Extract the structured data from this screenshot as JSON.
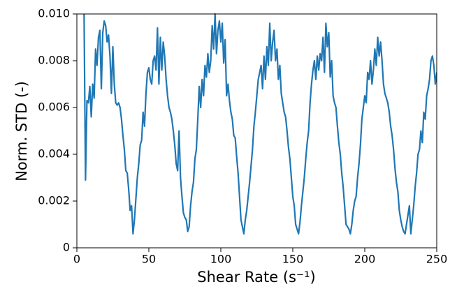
{
  "chart_data": {
    "type": "line",
    "x_label": "Shear Rate (s⁻¹)",
    "y_label": "Norm. STD (-)",
    "xlim": [
      0,
      250
    ],
    "xticks": [
      0,
      50,
      100,
      150,
      200,
      250
    ],
    "ylim": [
      0,
      0.01
    ],
    "yticks": [
      0,
      0.002,
      0.004,
      0.006,
      0.008,
      {
        "value": 0.01,
        "label": "0.010"
      }
    ],
    "grid": false,
    "series": [
      {
        "color": "#1f77b4",
        "x": [
          5,
          6,
          7,
          8,
          9,
          10,
          11,
          12,
          13,
          14,
          15,
          16,
          17,
          18,
          19,
          20,
          21,
          22,
          23,
          24,
          25,
          26,
          27,
          28,
          29,
          30,
          31,
          32,
          33,
          34,
          35,
          36,
          37,
          38,
          39,
          40,
          41,
          42,
          43,
          44,
          45,
          46,
          47,
          48,
          49,
          50,
          51,
          52,
          53,
          54,
          55,
          56,
          57,
          58,
          59,
          60,
          61,
          62,
          63,
          64,
          65,
          66,
          67,
          68,
          69,
          70,
          71,
          72,
          73,
          74,
          75,
          76,
          77,
          78,
          79,
          80,
          81,
          82,
          83,
          84,
          85,
          86,
          87,
          88,
          89,
          90,
          91,
          92,
          93,
          94,
          95,
          96,
          97,
          98,
          99,
          100,
          101,
          102,
          103,
          104,
          105,
          106,
          107,
          108,
          109,
          110,
          111,
          112,
          113,
          114,
          115,
          116,
          117,
          118,
          119,
          120,
          121,
          122,
          123,
          124,
          125,
          126,
          127,
          128,
          129,
          130,
          131,
          132,
          133,
          134,
          135,
          136,
          137,
          138,
          139,
          140,
          141,
          142,
          143,
          144,
          145,
          146,
          147,
          148,
          149,
          150,
          151,
          152,
          153,
          154,
          155,
          156,
          157,
          158,
          159,
          160,
          161,
          162,
          163,
          164,
          165,
          166,
          167,
          168,
          169,
          170,
          171,
          172,
          173,
          174,
          175,
          176,
          177,
          178,
          179,
          180,
          181,
          182,
          183,
          184,
          185,
          186,
          187,
          188,
          189,
          190,
          191,
          192,
          193,
          194,
          195,
          196,
          197,
          198,
          199,
          200,
          201,
          202,
          203,
          204,
          205,
          206,
          207,
          208,
          209,
          210,
          211,
          212,
          213,
          214,
          215,
          216,
          217,
          218,
          219,
          220,
          221,
          222,
          223,
          224,
          225,
          226,
          227,
          228,
          229,
          230,
          231,
          232,
          233,
          234,
          235,
          236,
          237,
          238,
          239,
          240,
          241,
          242,
          243,
          244,
          245,
          246,
          247,
          248,
          249,
          250
        ],
        "values": [
          0.01,
          0.0029,
          0.0063,
          0.0062,
          0.0069,
          0.0056,
          0.007,
          0.0064,
          0.0085,
          0.0078,
          0.009,
          0.0093,
          0.0068,
          0.0092,
          0.0097,
          0.0095,
          0.0088,
          0.0091,
          0.0082,
          0.0066,
          0.0086,
          0.007,
          0.0062,
          0.0061,
          0.0062,
          0.006,
          0.0055,
          0.0048,
          0.0042,
          0.0033,
          0.0032,
          0.0025,
          0.0016,
          0.0018,
          0.0006,
          0.0012,
          0.0021,
          0.003,
          0.0036,
          0.0044,
          0.0046,
          0.0058,
          0.0052,
          0.0066,
          0.0075,
          0.0077,
          0.0072,
          0.007,
          0.008,
          0.0082,
          0.0076,
          0.0094,
          0.007,
          0.009,
          0.0076,
          0.0088,
          0.0082,
          0.0072,
          0.0065,
          0.006,
          0.0058,
          0.0055,
          0.005,
          0.0044,
          0.0036,
          0.0033,
          0.005,
          0.003,
          0.0022,
          0.0015,
          0.0013,
          0.0012,
          0.0007,
          0.0009,
          0.0018,
          0.0024,
          0.0028,
          0.0038,
          0.0042,
          0.0055,
          0.0069,
          0.006,
          0.0072,
          0.0065,
          0.0078,
          0.0073,
          0.0083,
          0.0075,
          0.008,
          0.0095,
          0.0085,
          0.01,
          0.0083,
          0.0093,
          0.0097,
          0.0088,
          0.0096,
          0.0079,
          0.0089,
          0.0065,
          0.007,
          0.0063,
          0.0058,
          0.0055,
          0.0048,
          0.0047,
          0.0039,
          0.0032,
          0.0022,
          0.0012,
          0.0009,
          0.0006,
          0.0012,
          0.0016,
          0.0022,
          0.0028,
          0.0035,
          0.0042,
          0.0052,
          0.0058,
          0.0065,
          0.0072,
          0.0075,
          0.0078,
          0.0068,
          0.0082,
          0.0072,
          0.0086,
          0.0078,
          0.0096,
          0.008,
          0.0088,
          0.0093,
          0.008,
          0.0085,
          0.0072,
          0.0078,
          0.0066,
          0.0062,
          0.0058,
          0.0056,
          0.005,
          0.0043,
          0.0038,
          0.003,
          0.0022,
          0.0018,
          0.001,
          0.0008,
          0.0006,
          0.0011,
          0.0018,
          0.0024,
          0.003,
          0.0038,
          0.0045,
          0.005,
          0.0062,
          0.007,
          0.0076,
          0.008,
          0.0072,
          0.0082,
          0.0076,
          0.0083,
          0.008,
          0.009,
          0.0075,
          0.0096,
          0.0086,
          0.0092,
          0.0073,
          0.008,
          0.0065,
          0.0062,
          0.006,
          0.0052,
          0.0045,
          0.004,
          0.0032,
          0.0026,
          0.0018,
          0.001,
          0.0009,
          0.0008,
          0.0006,
          0.001,
          0.0016,
          0.002,
          0.0022,
          0.003,
          0.0036,
          0.0044,
          0.0055,
          0.006,
          0.0065,
          0.0062,
          0.0075,
          0.0072,
          0.008,
          0.007,
          0.0076,
          0.0085,
          0.0078,
          0.009,
          0.0082,
          0.0088,
          0.008,
          0.007,
          0.0066,
          0.0064,
          0.0062,
          0.0058,
          0.0052,
          0.0048,
          0.0042,
          0.0034,
          0.0028,
          0.0024,
          0.0016,
          0.0012,
          0.0009,
          0.0007,
          0.0006,
          0.001,
          0.0014,
          0.0018,
          0.0006,
          0.0012,
          0.0018,
          0.0026,
          0.0032,
          0.004,
          0.0042,
          0.005,
          0.0045,
          0.0058,
          0.0055,
          0.0065,
          0.0068,
          0.0072,
          0.008,
          0.0082,
          0.0078,
          0.007,
          0.0075
        ]
      }
    ]
  }
}
